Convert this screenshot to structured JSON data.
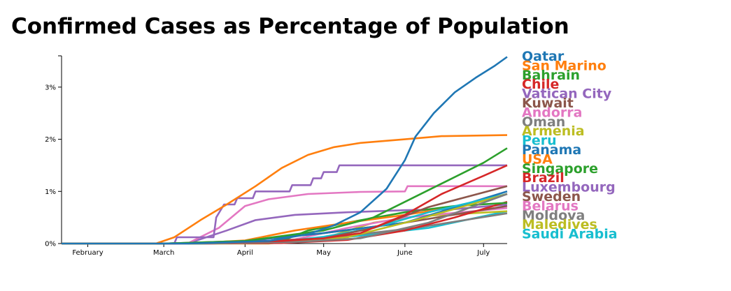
{
  "title": "Confirmed Cases as Percentage of Population",
  "chart_data": {
    "type": "line",
    "title": "Confirmed Cases as Percentage of Population",
    "xlabel": "",
    "ylabel": "",
    "x_tick_labels": [
      "February",
      "March",
      "April",
      "May",
      "June",
      "July"
    ],
    "y_tick_labels": [
      "0%",
      "1%",
      "2%",
      "3%"
    ],
    "ylim": [
      0,
      3.6
    ],
    "grid": false,
    "legend_position": "right",
    "series": [
      {
        "name": "Qatar",
        "color": "#1f77b4",
        "points": [
          [
            "2020-01-22",
            0
          ],
          [
            "2020-03-10",
            0
          ],
          [
            "2020-04-10",
            0.05
          ],
          [
            "2020-04-25",
            0.18
          ],
          [
            "2020-05-05",
            0.35
          ],
          [
            "2020-05-15",
            0.6
          ],
          [
            "2020-05-25",
            1.05
          ],
          [
            "2020-06-01",
            1.6
          ],
          [
            "2020-06-05",
            2.05
          ],
          [
            "2020-06-12",
            2.5
          ],
          [
            "2020-06-20",
            2.9
          ],
          [
            "2020-06-28",
            3.18
          ],
          [
            "2020-07-05",
            3.4
          ],
          [
            "2020-07-10",
            3.58
          ]
        ]
      },
      {
        "name": "San Marino",
        "color": "#ff7f0e",
        "points": [
          [
            "2020-01-22",
            0
          ],
          [
            "2020-02-27",
            0
          ],
          [
            "2020-03-05",
            0.12
          ],
          [
            "2020-03-15",
            0.45
          ],
          [
            "2020-03-25",
            0.75
          ],
          [
            "2020-04-05",
            1.1
          ],
          [
            "2020-04-15",
            1.45
          ],
          [
            "2020-04-25",
            1.7
          ],
          [
            "2020-05-05",
            1.85
          ],
          [
            "2020-05-15",
            1.93
          ],
          [
            "2020-06-01",
            2.0
          ],
          [
            "2020-06-15",
            2.06
          ],
          [
            "2020-07-10",
            2.08
          ]
        ]
      },
      {
        "name": "Bahrain",
        "color": "#2ca02c",
        "points": [
          [
            "2020-01-22",
            0
          ],
          [
            "2020-03-01",
            0
          ],
          [
            "2020-04-01",
            0.05
          ],
          [
            "2020-05-01",
            0.25
          ],
          [
            "2020-05-20",
            0.5
          ],
          [
            "2020-06-01",
            0.8
          ],
          [
            "2020-06-15",
            1.15
          ],
          [
            "2020-07-01",
            1.55
          ],
          [
            "2020-07-10",
            1.83
          ]
        ]
      },
      {
        "name": "Chile",
        "color": "#d62728",
        "points": [
          [
            "2020-01-22",
            0
          ],
          [
            "2020-03-05",
            0
          ],
          [
            "2020-04-15",
            0.05
          ],
          [
            "2020-05-01",
            0.1
          ],
          [
            "2020-05-15",
            0.2
          ],
          [
            "2020-06-01",
            0.55
          ],
          [
            "2020-06-15",
            0.95
          ],
          [
            "2020-07-01",
            1.3
          ],
          [
            "2020-07-10",
            1.5
          ]
        ]
      },
      {
        "name": "Vatican City",
        "color": "#9467bd",
        "points": [
          [
            "2020-01-22",
            0
          ],
          [
            "2020-03-05",
            0
          ],
          [
            "2020-03-06",
            0.12
          ],
          [
            "2020-03-20",
            0.12
          ],
          [
            "2020-03-21",
            0.5
          ],
          [
            "2020-03-24",
            0.75
          ],
          [
            "2020-03-28",
            0.75
          ],
          [
            "2020-03-29",
            0.87
          ],
          [
            "2020-04-04",
            0.87
          ],
          [
            "2020-04-05",
            1.0
          ],
          [
            "2020-04-18",
            1.0
          ],
          [
            "2020-04-19",
            1.12
          ],
          [
            "2020-04-26",
            1.12
          ],
          [
            "2020-04-27",
            1.25
          ],
          [
            "2020-04-30",
            1.25
          ],
          [
            "2020-05-01",
            1.37
          ],
          [
            "2020-05-06",
            1.37
          ],
          [
            "2020-05-07",
            1.5
          ],
          [
            "2020-07-10",
            1.5
          ]
        ]
      },
      {
        "name": "Kuwait",
        "color": "#8c564b",
        "points": [
          [
            "2020-01-22",
            0
          ],
          [
            "2020-03-01",
            0
          ],
          [
            "2020-04-10",
            0.05
          ],
          [
            "2020-05-01",
            0.1
          ],
          [
            "2020-05-20",
            0.3
          ],
          [
            "2020-06-10",
            0.7
          ],
          [
            "2020-07-10",
            1.1
          ]
        ]
      },
      {
        "name": "Andorra",
        "color": "#e377c2",
        "points": [
          [
            "2020-01-22",
            0
          ],
          [
            "2020-03-10",
            0
          ],
          [
            "2020-03-22",
            0.3
          ],
          [
            "2020-04-01",
            0.72
          ],
          [
            "2020-04-10",
            0.85
          ],
          [
            "2020-04-25",
            0.95
          ],
          [
            "2020-05-15",
            0.99
          ],
          [
            "2020-06-01",
            1.0
          ],
          [
            "2020-06-02",
            1.1
          ],
          [
            "2020-07-10",
            1.1
          ]
        ]
      },
      {
        "name": "Oman",
        "color": "#7f7f7f",
        "points": [
          [
            "2020-01-22",
            0
          ],
          [
            "2020-03-15",
            0
          ],
          [
            "2020-04-20",
            0.03
          ],
          [
            "2020-05-15",
            0.1
          ],
          [
            "2020-06-10",
            0.4
          ],
          [
            "2020-07-10",
            0.95
          ]
        ]
      },
      {
        "name": "Armenia",
        "color": "#bcbd22",
        "points": [
          [
            "2020-01-22",
            0
          ],
          [
            "2020-03-15",
            0
          ],
          [
            "2020-04-15",
            0.03
          ],
          [
            "2020-05-10",
            0.12
          ],
          [
            "2020-06-05",
            0.45
          ],
          [
            "2020-07-10",
            0.95
          ]
        ]
      },
      {
        "name": "Peru",
        "color": "#17becf",
        "points": [
          [
            "2020-01-22",
            0
          ],
          [
            "2020-03-15",
            0
          ],
          [
            "2020-04-15",
            0.04
          ],
          [
            "2020-05-01",
            0.13
          ],
          [
            "2020-05-20",
            0.3
          ],
          [
            "2020-06-10",
            0.6
          ],
          [
            "2020-07-10",
            0.95
          ]
        ]
      },
      {
        "name": "Panama",
        "color": "#1f77b4",
        "points": [
          [
            "2020-01-22",
            0
          ],
          [
            "2020-03-10",
            0
          ],
          [
            "2020-04-01",
            0.05
          ],
          [
            "2020-05-01",
            0.2
          ],
          [
            "2020-06-01",
            0.4
          ],
          [
            "2020-07-10",
            1.0
          ]
        ]
      },
      {
        "name": "USA",
        "color": "#ff7f0e",
        "points": [
          [
            "2020-01-22",
            0
          ],
          [
            "2020-03-10",
            0
          ],
          [
            "2020-04-01",
            0.06
          ],
          [
            "2020-04-20",
            0.25
          ],
          [
            "2020-05-10",
            0.4
          ],
          [
            "2020-06-01",
            0.55
          ],
          [
            "2020-06-20",
            0.7
          ],
          [
            "2020-07-10",
            0.95
          ]
        ]
      },
      {
        "name": "Singapore",
        "color": "#2ca02c",
        "points": [
          [
            "2020-01-22",
            0
          ],
          [
            "2020-03-15",
            0
          ],
          [
            "2020-04-15",
            0.05
          ],
          [
            "2020-04-25",
            0.25
          ],
          [
            "2020-05-10",
            0.4
          ],
          [
            "2020-06-01",
            0.6
          ],
          [
            "2020-06-20",
            0.72
          ],
          [
            "2020-07-10",
            0.78
          ]
        ]
      },
      {
        "name": "Brazil",
        "color": "#d62728",
        "points": [
          [
            "2020-01-22",
            0
          ],
          [
            "2020-03-15",
            0
          ],
          [
            "2020-04-15",
            0.01
          ],
          [
            "2020-05-10",
            0.07
          ],
          [
            "2020-06-01",
            0.25
          ],
          [
            "2020-06-20",
            0.5
          ],
          [
            "2020-07-10",
            0.8
          ]
        ]
      },
      {
        "name": "Luxembourg",
        "color": "#9467bd",
        "points": [
          [
            "2020-01-22",
            0
          ],
          [
            "2020-03-10",
            0
          ],
          [
            "2020-03-25",
            0.25
          ],
          [
            "2020-04-05",
            0.45
          ],
          [
            "2020-04-20",
            0.55
          ],
          [
            "2020-05-10",
            0.6
          ],
          [
            "2020-06-01",
            0.64
          ],
          [
            "2020-06-20",
            0.66
          ],
          [
            "2020-07-10",
            0.75
          ]
        ]
      },
      {
        "name": "Sweden",
        "color": "#8c564b",
        "points": [
          [
            "2020-01-22",
            0
          ],
          [
            "2020-03-01",
            0
          ],
          [
            "2020-04-01",
            0.05
          ],
          [
            "2020-05-01",
            0.2
          ],
          [
            "2020-06-01",
            0.4
          ],
          [
            "2020-07-10",
            0.72
          ]
        ]
      },
      {
        "name": "Belarus",
        "color": "#e377c2",
        "points": [
          [
            "2020-01-22",
            0
          ],
          [
            "2020-03-20",
            0
          ],
          [
            "2020-04-20",
            0.08
          ],
          [
            "2020-05-10",
            0.3
          ],
          [
            "2020-06-01",
            0.5
          ],
          [
            "2020-07-10",
            0.68
          ]
        ]
      },
      {
        "name": "Moldova",
        "color": "#7f7f7f",
        "points": [
          [
            "2020-01-22",
            0
          ],
          [
            "2020-03-15",
            0
          ],
          [
            "2020-04-15",
            0.05
          ],
          [
            "2020-05-10",
            0.15
          ],
          [
            "2020-06-05",
            0.3
          ],
          [
            "2020-07-10",
            0.58
          ]
        ]
      },
      {
        "name": "Maledives",
        "color": "#bcbd22",
        "points": [
          [
            "2020-01-22",
            0
          ],
          [
            "2020-04-10",
            0
          ],
          [
            "2020-05-01",
            0.1
          ],
          [
            "2020-05-20",
            0.4
          ],
          [
            "2020-06-05",
            0.52
          ],
          [
            "2020-07-10",
            0.62
          ]
        ]
      },
      {
        "name": "Saudi Arabia",
        "color": "#17becf",
        "points": [
          [
            "2020-01-22",
            0
          ],
          [
            "2020-03-20",
            0
          ],
          [
            "2020-04-20",
            0.04
          ],
          [
            "2020-05-15",
            0.15
          ],
          [
            "2020-06-10",
            0.3
          ],
          [
            "2020-07-10",
            0.62
          ]
        ]
      }
    ]
  }
}
